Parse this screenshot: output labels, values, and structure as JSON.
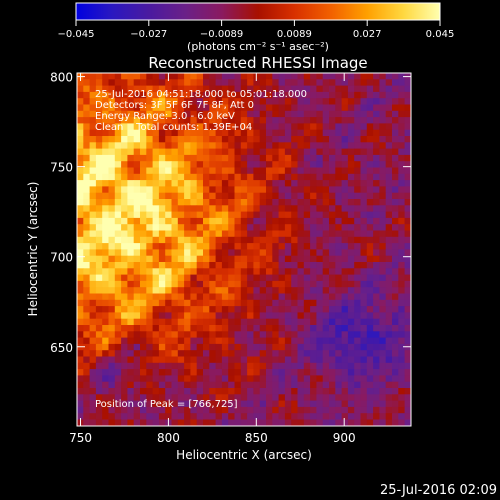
{
  "chart_data": {
    "type": "heatmap",
    "title": "Reconstructed RHESSI Image",
    "xlabel": "Heliocentric X (arcsec)",
    "ylabel": "Heliocentric Y (arcsec)",
    "xlim": [
      748,
      938
    ],
    "ylim": [
      606,
      802
    ],
    "x_ticks": [
      750,
      800,
      850,
      900
    ],
    "y_ticks": [
      650,
      700,
      750,
      800
    ],
    "colorbar": {
      "min": -0.045,
      "max": 0.045,
      "ticks": [
        "−0.045",
        "−0.027",
        "−0.0089",
        "0.0089",
        "0.027",
        "0.045"
      ],
      "units_label": "(photons cm⁻² s⁻¹ asec⁻²)",
      "colors": [
        "#0000e0",
        "#2a18c0",
        "#4a1aa0",
        "#6a2088",
        "#8a1a60",
        "#a81000",
        "#d83000",
        "#f26000",
        "#ffa000",
        "#ffd840",
        "#ffffb0"
      ]
    },
    "annotations": [
      "25-Jul-2016 04:51:18.000 to 05:01:18.000",
      "Detectors: 3F 5F 6F 7F 8F, Att 0",
      "Energy Range: 3.0 - 6.0 keV",
      "Clean    Total counts: 1.39E+04"
    ],
    "peak_label": "Position of Peak = [766,725]",
    "peak": {
      "x": 766,
      "y": 725
    }
  },
  "footer_timestamp": "25-Jul-2016 02:09"
}
